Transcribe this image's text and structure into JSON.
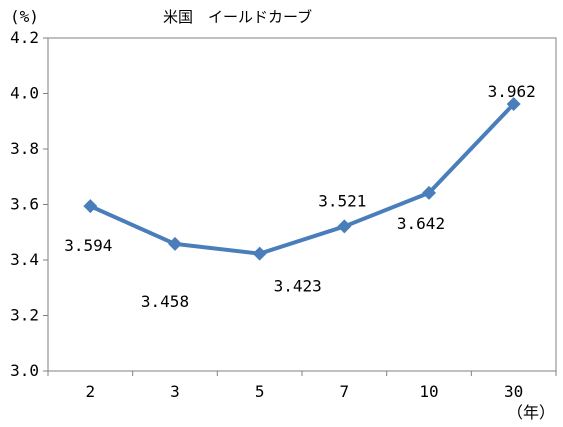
{
  "chart_data": {
    "type": "line",
    "title": "米国　イールドカーブ",
    "ylabel": "(%)",
    "xlabel": "（年）",
    "categories": [
      "2",
      "3",
      "5",
      "7",
      "10",
      "30"
    ],
    "series": [
      {
        "values": [
          3.594,
          3.458,
          3.423,
          3.521,
          3.642,
          3.962
        ]
      }
    ],
    "data_labels": [
      "3.594",
      "3.458",
      "3.423",
      "3.521",
      "3.642",
      "3.962"
    ],
    "ylim": [
      3.0,
      4.2
    ],
    "yticks": [
      "3.0",
      "3.2",
      "3.4",
      "3.6",
      "3.8",
      "4.0",
      "4.2"
    ],
    "grid": false,
    "legend": "none",
    "line_color": "#4a7ebb"
  }
}
